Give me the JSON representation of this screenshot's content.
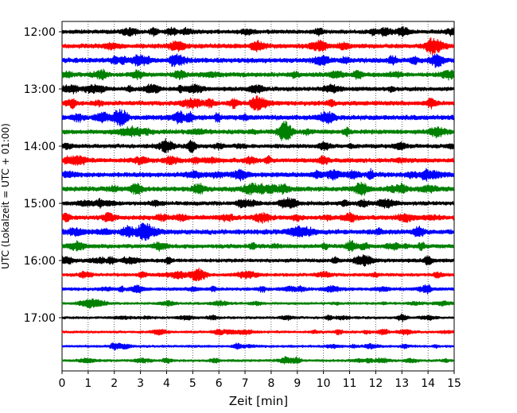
{
  "chart_data": {
    "type": "line",
    "title": "",
    "xlabel": "Zeit  [min]",
    "ylabel": "UTC (Lokalzeit = UTC + 01:00)",
    "xlim": [
      0,
      15
    ],
    "x_ticks": [
      0,
      1,
      2,
      3,
      4,
      5,
      6,
      7,
      8,
      9,
      10,
      11,
      12,
      13,
      14,
      15
    ],
    "y_tick_labels": [
      "12:00",
      "13:00",
      "14:00",
      "15:00",
      "16:00",
      "17:00"
    ],
    "y_tick_rows": [
      0,
      4,
      8,
      12,
      16,
      20
    ],
    "grid": "vertical dotted",
    "legend": "none",
    "row_start_times": [
      "12:00",
      "12:15",
      "12:30",
      "12:45",
      "13:00",
      "13:15",
      "13:30",
      "13:45",
      "14:00",
      "14:15",
      "14:30",
      "14:45",
      "15:00",
      "15:15",
      "15:30",
      "15:45",
      "16:00",
      "16:15",
      "16:30",
      "16:45",
      "17:00",
      "17:15",
      "17:30",
      "17:45"
    ],
    "row_colors": [
      "#000000",
      "#ff0000",
      "#0000ff",
      "#008000"
    ],
    "row_amplitudes": [
      1.0,
      1.1,
      1.2,
      1.1,
      1.0,
      1.1,
      1.2,
      1.1,
      1.0,
      1.1,
      1.2,
      1.2,
      1.0,
      1.1,
      1.2,
      1.0,
      0.9,
      0.8,
      0.8,
      0.6,
      0.6,
      0.6,
      0.6,
      0.6
    ]
  }
}
